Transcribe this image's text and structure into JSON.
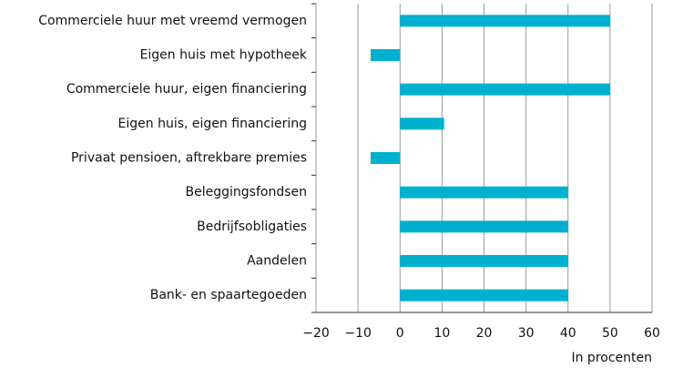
{
  "chart_data": {
    "type": "barh",
    "categories": [
      "Commerciele huur met vreemd vermogen",
      "Eigen huis met hypotheek",
      "Commerciele huur, eigen financiering",
      "Eigen huis, eigen financiering",
      "Privaat pensioen, aftrekbare premies",
      "Beleggingsfondsen",
      "Bedrijfsobligaties",
      "Aandelen",
      "Bank- en spaartegoeden"
    ],
    "values": [
      50,
      -7,
      50,
      10.5,
      -7,
      40,
      40,
      40,
      40
    ],
    "color": "#00b0cf",
    "xlabel": "In procenten",
    "xlim": [
      -20,
      60
    ],
    "xticks": [
      {
        "value": -20,
        "label": "−20"
      },
      {
        "value": -10,
        "label": "−10"
      },
      0,
      10,
      20,
      30,
      40,
      50,
      60
    ],
    "grid": true
  }
}
